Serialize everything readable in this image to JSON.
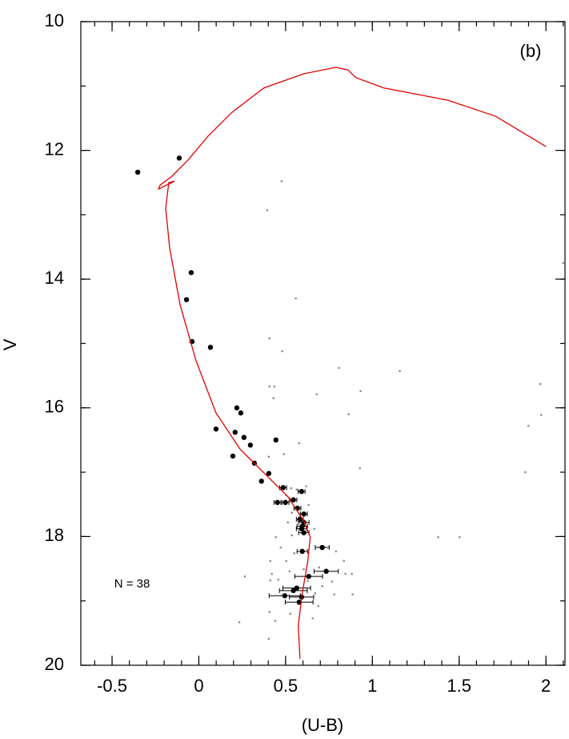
{
  "chart_data": {
    "type": "scatter",
    "xlabel": "(U-B)",
    "ylabel": "V",
    "annotations": [
      "(b)",
      "N = 38"
    ],
    "xlim": [
      -0.68,
      2.11
    ],
    "ylim": [
      20,
      10
    ],
    "xticks": [
      -0.5,
      0,
      0.5,
      1,
      1.5,
      2
    ],
    "yticks": [
      10,
      12,
      14,
      16,
      18,
      20
    ],
    "xminor_step": 0.1,
    "yminor_step": 1,
    "series": [
      {
        "type": "scatter",
        "color": "#000000",
        "x": [
          -0.113,
          -0.352,
          -0.044,
          -0.071,
          -0.039,
          0.067,
          0.219,
          0.242,
          0.209,
          0.099,
          0.26,
          0.297,
          0.444,
          0.196,
          0.32,
          0.403,
          0.361,
          0.486,
          0.592,
          0.453,
          0.499,
          0.545,
          0.568,
          0.605,
          0.582,
          0.605,
          0.596,
          0.592,
          0.605,
          0.596,
          0.711,
          0.734,
          0.633,
          0.564,
          0.545,
          0.495,
          0.592,
          0.578
        ],
        "y": [
          12.12,
          12.34,
          13.9,
          14.32,
          14.97,
          15.06,
          16.0,
          16.08,
          16.38,
          16.33,
          16.46,
          16.58,
          16.5,
          16.75,
          16.86,
          17.02,
          17.14,
          17.24,
          17.3,
          17.47,
          17.47,
          17.43,
          17.56,
          17.65,
          17.73,
          17.78,
          17.84,
          17.88,
          17.94,
          18.23,
          18.17,
          18.54,
          18.62,
          18.8,
          18.84,
          18.92,
          18.94,
          19.02
        ],
        "xerr": [
          null,
          null,
          null,
          null,
          null,
          null,
          null,
          null,
          null,
          null,
          null,
          null,
          null,
          null,
          null,
          null,
          null,
          0.02,
          0.02,
          0.02,
          0.02,
          0.02,
          0.02,
          0.02,
          0.02,
          0.03,
          0.03,
          0.03,
          0.03,
          0.03,
          0.04,
          0.07,
          0.08,
          0.08,
          0.08,
          0.09,
          0.07,
          0.08
        ]
      },
      {
        "type": "scatter",
        "color": "#8c8c8c",
        "x": [
          0.477,
          0.394,
          0.559,
          0.407,
          0.481,
          0.407,
          0.435,
          0.43,
          0.679,
          0.932,
          1.158,
          0.863,
          0.808,
          1.968,
          1.973,
          1.899,
          1.881,
          1.379,
          1.503,
          0.928,
          0.49,
          0.578,
          0.403,
          0.532,
          0.564,
          0.504,
          0.619,
          0.536,
          0.569,
          0.633,
          0.513,
          0.444,
          0.536,
          0.665,
          0.472,
          0.504,
          0.55,
          0.412,
          0.421,
          0.458,
          0.523,
          0.605,
          0.693,
          0.79,
          0.836,
          0.845,
          0.767,
          0.882,
          0.886,
          0.78,
          0.688,
          0.656,
          0.527,
          0.407,
          0.44,
          0.403,
          0.233,
          0.265,
          0.67,
          0.711,
          0.628,
          2.1,
          0.412,
          0.481
        ],
        "y": [
          12.48,
          12.93,
          14.3,
          14.92,
          15.12,
          15.67,
          15.67,
          15.85,
          15.79,
          15.74,
          15.43,
          16.1,
          15.38,
          15.63,
          16.11,
          16.28,
          17.0,
          18.01,
          18.01,
          16.94,
          16.72,
          16.55,
          16.76,
          17.25,
          17.27,
          17.36,
          17.22,
          17.63,
          17.76,
          17.51,
          17.78,
          18.01,
          17.98,
          17.88,
          18.17,
          18.38,
          18.26,
          18.38,
          18.58,
          18.67,
          18.54,
          18.51,
          18.48,
          18.23,
          18.38,
          18.58,
          18.7,
          18.58,
          18.9,
          18.9,
          19.08,
          19.27,
          19.2,
          19.17,
          19.31,
          19.59,
          19.33,
          18.62,
          18.88,
          18.77,
          18.69,
          13.75,
          18.68,
          18.9
        ]
      },
      {
        "type": "line",
        "color": "#e00000",
        "x": [
          0.583,
          0.573,
          0.596,
          0.628,
          0.642,
          0.605,
          0.513,
          0.375,
          0.237,
          0.099,
          -0.016,
          -0.108,
          -0.168,
          -0.191,
          -0.173,
          -0.14,
          -0.232,
          -0.223,
          -0.154,
          -0.062,
          0.053,
          0.191,
          0.375,
          0.605,
          0.79,
          0.859,
          0.905,
          1.066,
          1.434,
          1.71,
          2.0
        ],
        "y": [
          19.9,
          19.38,
          18.88,
          18.38,
          18.01,
          17.76,
          17.38,
          17.01,
          16.64,
          16.08,
          15.27,
          14.4,
          13.52,
          12.9,
          12.5,
          12.48,
          12.6,
          12.54,
          12.4,
          12.15,
          11.78,
          11.41,
          11.03,
          10.81,
          10.71,
          10.75,
          10.87,
          11.03,
          11.22,
          11.47,
          11.94
        ]
      }
    ]
  }
}
